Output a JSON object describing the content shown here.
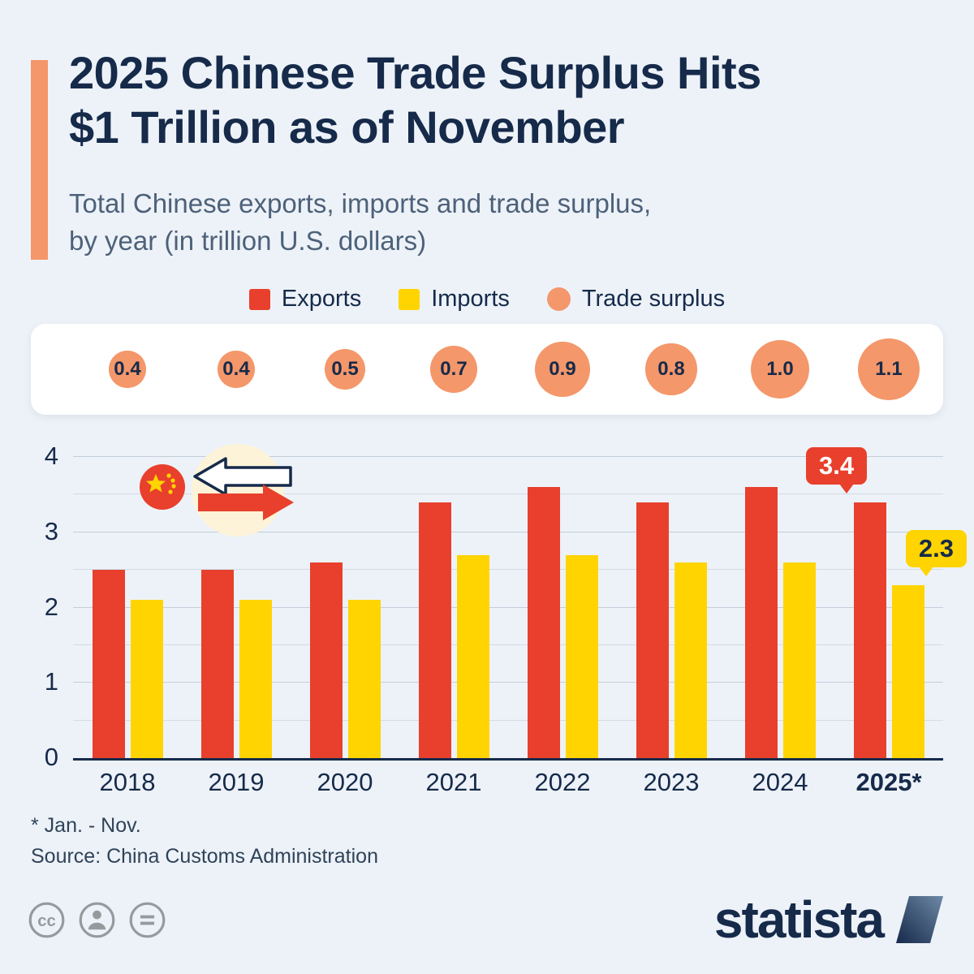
{
  "header": {
    "title_line1": "2025 Chinese Trade Surplus Hits",
    "title_line2": "$1 Trillion as of November",
    "subtitle_line1": "Total Chinese exports, imports and trade surplus,",
    "subtitle_line2": "by year (in trillion U.S. dollars)"
  },
  "legend": [
    {
      "label": "Exports",
      "color": "#e8402c",
      "shape": "square"
    },
    {
      "label": "Imports",
      "color": "#ffd400",
      "shape": "square"
    },
    {
      "label": "Trade surplus",
      "color": "#f4976a",
      "shape": "circle"
    }
  ],
  "chart_data": {
    "type": "bar",
    "title": "2025 Chinese Trade Surplus Hits $1 Trillion as of November",
    "subtitle": "Total Chinese exports, imports and trade surplus, by year (in trillion U.S. dollars)",
    "categories": [
      "2018",
      "2019",
      "2020",
      "2021",
      "2022",
      "2023",
      "2024",
      "2025*"
    ],
    "series": [
      {
        "name": "Exports",
        "color": "#e8402c",
        "values": [
          2.5,
          2.5,
          2.6,
          3.4,
          3.6,
          3.4,
          3.6,
          3.4
        ]
      },
      {
        "name": "Imports",
        "color": "#ffd400",
        "values": [
          2.1,
          2.1,
          2.1,
          2.7,
          2.7,
          2.6,
          2.6,
          2.3
        ]
      },
      {
        "name": "Trade surplus",
        "color": "#f4976a",
        "values": [
          0.4,
          0.4,
          0.5,
          0.7,
          0.9,
          0.8,
          1.0,
          1.1
        ]
      }
    ],
    "ylim": [
      0,
      4
    ],
    "yticks": [
      0,
      1,
      2,
      3,
      4
    ],
    "grid": true,
    "legend_position": "top",
    "callouts": [
      {
        "series": "Exports",
        "value": "3.4",
        "bg": "#e8402c",
        "fg": "#ffffff"
      },
      {
        "series": "Imports",
        "value": "2.3",
        "bg": "#ffd400",
        "fg": "#162a4a"
      }
    ]
  },
  "footnote": "* Jan. - Nov.",
  "source": "Source: China Customs Administration",
  "branding": {
    "logo_text": "statista"
  },
  "icons": {
    "license": [
      "cc-icon",
      "person-icon",
      "equals-icon"
    ],
    "illustration": [
      "china-flag-icon",
      "left-arrow-icon",
      "right-arrow-icon"
    ]
  },
  "colors": {
    "background": "#edf2f8",
    "navy": "#162a4a",
    "subtitle": "#4d6179",
    "exports_red": "#e8402c",
    "imports_yellow": "#ffd400",
    "surplus_orange": "#f4976a",
    "gridline": "#c9d4e0",
    "panel": "#ffffff",
    "illustration_cream": "#fdf3d8",
    "license_gray": "#97999c"
  }
}
